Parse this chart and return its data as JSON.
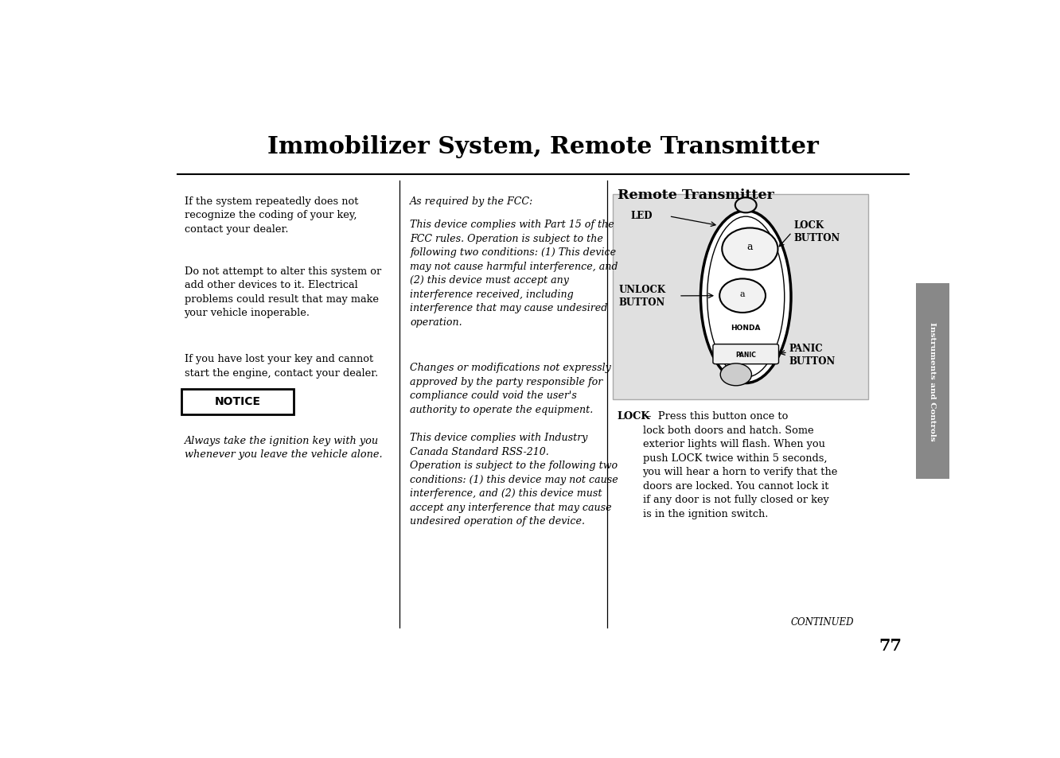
{
  "title": "Immobilizer System, Remote Transmitter",
  "bg_color": "#ffffff",
  "text_color": "#000000",
  "page_number": "77",
  "continued_text": "CONTINUED",
  "col1_para1": "If the system repeatedly does not\nrecognize the coding of your key,\ncontact your dealer.",
  "col1_para2": "Do not attempt to alter this system or\nadd other devices to it. Electrical\nproblems could result that may make\nyour vehicle inoperable.",
  "col1_para3": "If you have lost your key and cannot\nstart the engine, contact your dealer.",
  "notice_label": "NOTICE",
  "notice_italic": "Always take the ignition key with you\nwhenever you leave the vehicle alone.",
  "col2_para1_line1": "As required by the FCC:",
  "col2_para1_rest": "This device complies with Part 15 of the\nFCC rules. Operation is subject to the\nfollowing two conditions: (1) This device\nmay not cause harmful interference, and\n(2) this device must accept any\ninterference received, including\ninterference that may cause undesired\noperation.",
  "col2_para2": "Changes or modifications not expressly\napproved by the party responsible for\ncompliance could void the user's\nauthority to operate the equipment.",
  "col2_para3": "This device complies with Industry\nCanada Standard RSS-210.\nOperation is subject to the following two\nconditions: (1) this device may not cause\ninterference, and (2) this device must\naccept any interference that may cause\nundesired operation of the device.",
  "col3_header": "Remote Transmitter",
  "lock_bold": "LOCK",
  "lock_rest": " –  Press this button once to\nlock both doors and hatch. Some\nexterior lights will flash. When you\npush LOCK twice within 5 seconds,\nyou will hear a horn to verify that the\ndoors are locked. You cannot lock it\nif any door is not fully closed or key\nis in the ignition switch.",
  "diagram_bg": "#e0e0e0",
  "diagram_border": "#aaaaaa",
  "side_tab_text": "Instruments and Controls",
  "side_tab_bg": "#888888",
  "lbl_LED": "LED",
  "lbl_LOCK_BTN": "LOCK\nBUTTON",
  "lbl_UNLOCK_BTN": "UNLOCK\nBUTTON",
  "lbl_PANIC_BTN": "PANIC\nBUTTON",
  "lbl_HONDA": "HONDA",
  "lbl_PANIC": "PANIC"
}
